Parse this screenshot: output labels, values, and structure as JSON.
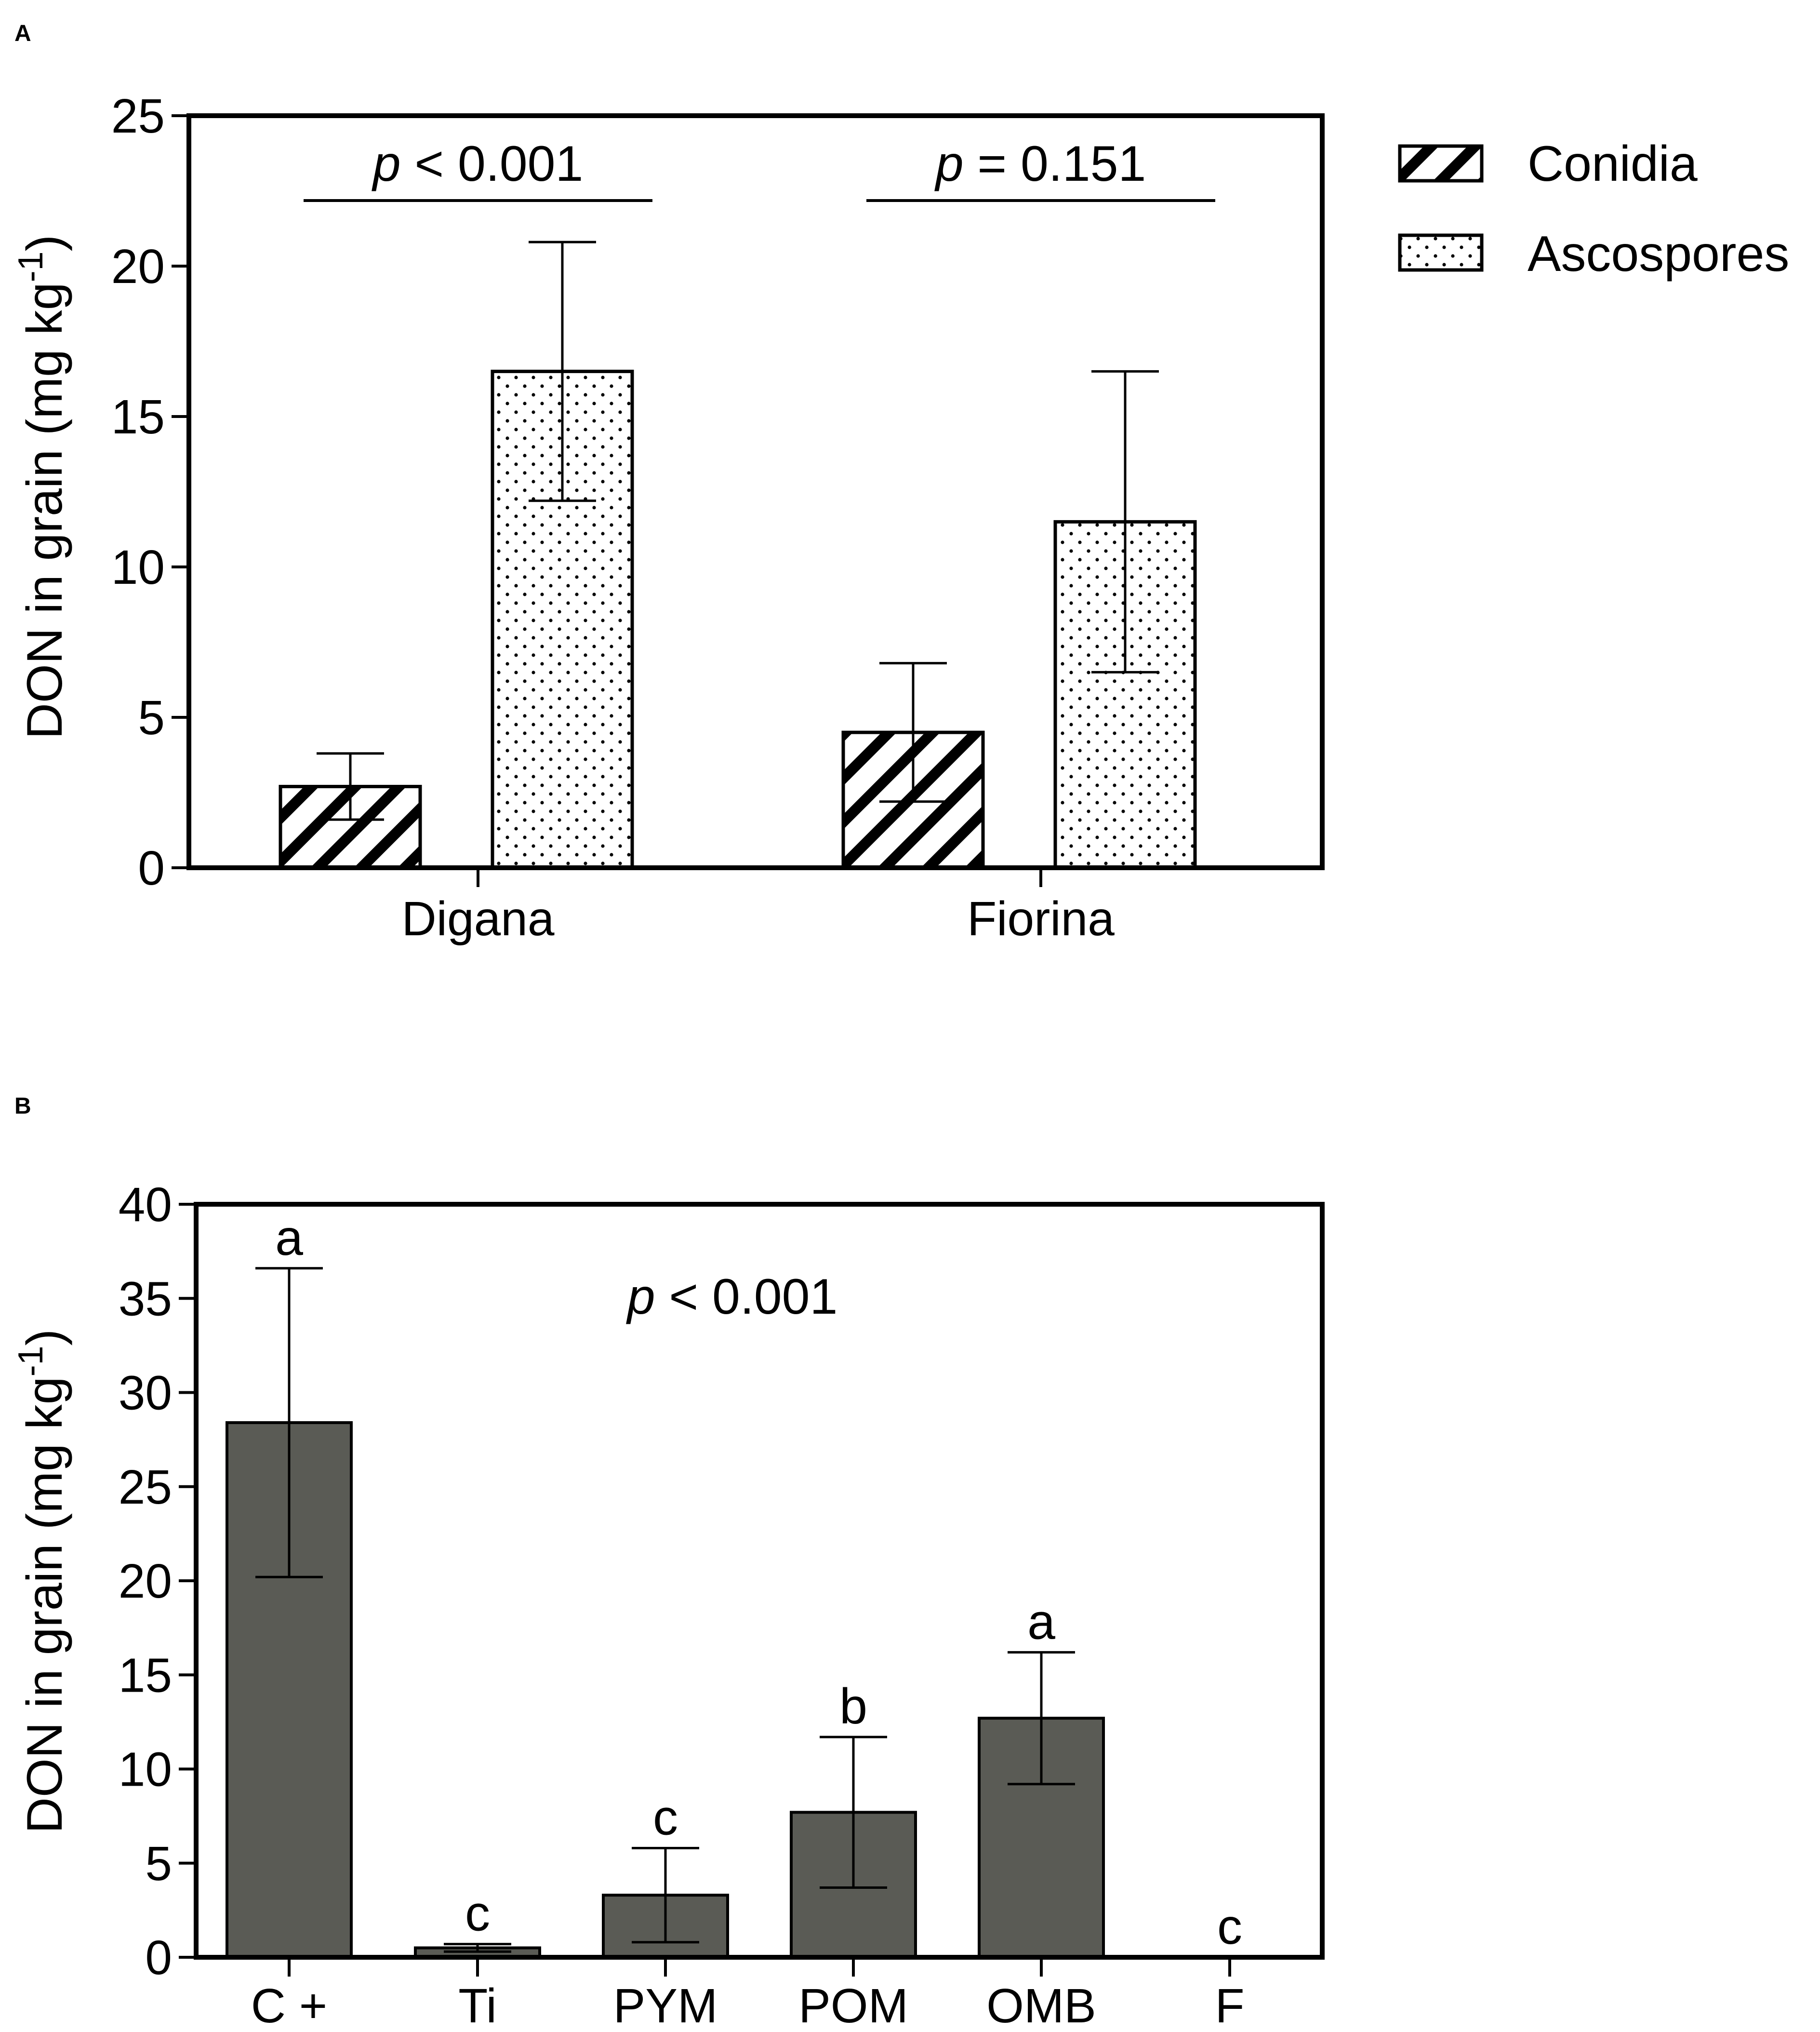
{
  "chart_data": [
    {
      "panel": "A",
      "type": "bar",
      "categories": [
        "Digana",
        "Fiorina"
      ],
      "series": [
        {
          "name": "Conidia",
          "pattern": "diagonal-hatch",
          "values": [
            2.7,
            4.5
          ],
          "errors": [
            1.1,
            2.3
          ]
        },
        {
          "name": "Ascospores",
          "pattern": "dots",
          "values": [
            16.5,
            11.5
          ],
          "errors": [
            4.3,
            5.0
          ]
        }
      ],
      "ylabel": "DON in grain (mg kg",
      "ylabel_sup": "-1",
      "ylabel_close": ")",
      "ylim": [
        0,
        25
      ],
      "yticks": [
        0,
        5,
        10,
        15,
        20,
        25
      ],
      "annotations": [
        {
          "category": "Digana",
          "p_symbol": "p",
          "text": " < 0.001"
        },
        {
          "category": "Fiorina",
          "p_symbol": "p",
          "text": " = 0.151"
        }
      ],
      "legend_position": "top-right",
      "grid": false
    },
    {
      "panel": "B",
      "type": "bar",
      "categories": [
        "C +",
        "Ti",
        "PYM",
        "POM",
        "OMB",
        "F"
      ],
      "series": [
        {
          "name": "DON",
          "color": "#5a5b55",
          "values": [
            28.4,
            0.5,
            3.3,
            7.7,
            12.7,
            0
          ],
          "errors": [
            8.2,
            0.2,
            2.5,
            4.0,
            3.5,
            0
          ]
        }
      ],
      "letters": [
        "a",
        "c",
        "c",
        "b",
        "a",
        "c"
      ],
      "ylabel": "DON in grain (mg kg",
      "ylabel_sup": "-1",
      "ylabel_close": ")",
      "ylim": [
        0,
        40
      ],
      "yticks": [
        0,
        5,
        10,
        15,
        20,
        25,
        30,
        35,
        40
      ],
      "annotation": {
        "p_symbol": "p",
        "text": " < 0.001"
      },
      "grid": false
    }
  ]
}
